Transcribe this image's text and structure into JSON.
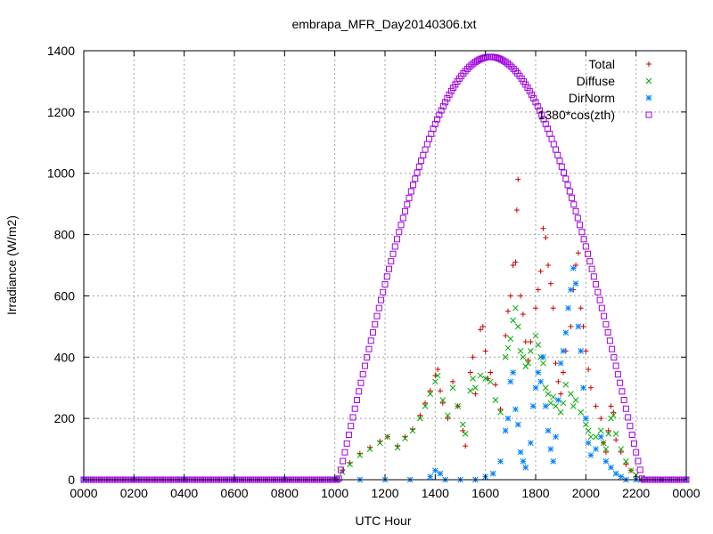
{
  "chart_data": {
    "type": "scatter",
    "title": "embrapa_MFR_Day20140306.txt",
    "xlabel": "UTC Hour",
    "ylabel": "Irradiance (W/m2)",
    "xlim": [
      0,
      2400
    ],
    "ylim": [
      0,
      1400
    ],
    "x_ticks": [
      "0000",
      "0200",
      "0400",
      "0600",
      "0800",
      "1000",
      "1200",
      "1400",
      "1600",
      "1800",
      "2000",
      "2200",
      "0000"
    ],
    "y_ticks": [
      "0",
      "200",
      "400",
      "600",
      "800",
      "1000",
      "1200",
      "1400"
    ],
    "grid": true,
    "legend_position": "top-right",
    "series": [
      {
        "name": "Total",
        "marker": "plus",
        "color": "#cc0000",
        "points": [
          [
            1010,
            0
          ],
          [
            1030,
            30
          ],
          [
            1060,
            55
          ],
          [
            1100,
            85
          ],
          [
            1140,
            105
          ],
          [
            1180,
            125
          ],
          [
            1210,
            140
          ],
          [
            1250,
            110
          ],
          [
            1280,
            140
          ],
          [
            1310,
            165
          ],
          [
            1340,
            210
          ],
          [
            1360,
            250
          ],
          [
            1380,
            290
          ],
          [
            1400,
            340
          ],
          [
            1410,
            360
          ],
          [
            1420,
            290
          ],
          [
            1430,
            250
          ],
          [
            1450,
            200
          ],
          [
            1470,
            320
          ],
          [
            1490,
            240
          ],
          [
            1510,
            160
          ],
          [
            1520,
            110
          ],
          [
            1540,
            350
          ],
          [
            1550,
            400
          ],
          [
            1560,
            280
          ],
          [
            1580,
            490
          ],
          [
            1590,
            500
          ],
          [
            1600,
            420
          ],
          [
            1610,
            330
          ],
          [
            1620,
            350
          ],
          [
            1640,
            310
          ],
          [
            1660,
            230
          ],
          [
            1680,
            470
          ],
          [
            1690,
            550
          ],
          [
            1700,
            600
          ],
          [
            1710,
            700
          ],
          [
            1720,
            710
          ],
          [
            1725,
            880
          ],
          [
            1730,
            980
          ],
          [
            1740,
            600
          ],
          [
            1750,
            540
          ],
          [
            1760,
            450
          ],
          [
            1770,
            390
          ],
          [
            1780,
            450
          ],
          [
            1800,
            560
          ],
          [
            1810,
            620
          ],
          [
            1820,
            680
          ],
          [
            1830,
            820
          ],
          [
            1840,
            790
          ],
          [
            1850,
            700
          ],
          [
            1860,
            640
          ],
          [
            1870,
            560
          ],
          [
            1880,
            380
          ],
          [
            1890,
            320
          ],
          [
            1900,
            280
          ],
          [
            1910,
            350
          ],
          [
            1920,
            420
          ],
          [
            1940,
            500
          ],
          [
            1950,
            620
          ],
          [
            1960,
            700
          ],
          [
            1970,
            740
          ],
          [
            1980,
            560
          ],
          [
            1990,
            500
          ],
          [
            2000,
            420
          ],
          [
            2010,
            360
          ],
          [
            2020,
            300
          ],
          [
            2040,
            240
          ],
          [
            2060,
            200
          ],
          [
            2070,
            120
          ],
          [
            2080,
            90
          ],
          [
            2090,
            160
          ],
          [
            2100,
            240
          ],
          [
            2110,
            220
          ],
          [
            2120,
            130
          ],
          [
            2140,
            90
          ],
          [
            2160,
            50
          ],
          [
            2180,
            30
          ],
          [
            2200,
            10
          ],
          [
            2220,
            0
          ]
        ]
      },
      {
        "name": "Diffuse",
        "marker": "cross",
        "color": "#00aa00",
        "points": [
          [
            1010,
            0
          ],
          [
            1030,
            25
          ],
          [
            1060,
            50
          ],
          [
            1100,
            80
          ],
          [
            1140,
            100
          ],
          [
            1180,
            120
          ],
          [
            1210,
            140
          ],
          [
            1250,
            105
          ],
          [
            1280,
            135
          ],
          [
            1310,
            160
          ],
          [
            1340,
            200
          ],
          [
            1360,
            240
          ],
          [
            1380,
            280
          ],
          [
            1400,
            320
          ],
          [
            1410,
            340
          ],
          [
            1430,
            260
          ],
          [
            1450,
            210
          ],
          [
            1470,
            300
          ],
          [
            1490,
            240
          ],
          [
            1510,
            180
          ],
          [
            1520,
            150
          ],
          [
            1540,
            290
          ],
          [
            1550,
            330
          ],
          [
            1560,
            300
          ],
          [
            1580,
            340
          ],
          [
            1600,
            330
          ],
          [
            1620,
            320
          ],
          [
            1640,
            260
          ],
          [
            1660,
            220
          ],
          [
            1680,
            400
          ],
          [
            1690,
            430
          ],
          [
            1700,
            460
          ],
          [
            1710,
            520
          ],
          [
            1720,
            560
          ],
          [
            1730,
            500
          ],
          [
            1740,
            420
          ],
          [
            1750,
            400
          ],
          [
            1760,
            370
          ],
          [
            1770,
            380
          ],
          [
            1780,
            420
          ],
          [
            1800,
            470
          ],
          [
            1810,
            440
          ],
          [
            1820,
            400
          ],
          [
            1830,
            380
          ],
          [
            1840,
            300
          ],
          [
            1850,
            280
          ],
          [
            1860,
            250
          ],
          [
            1870,
            270
          ],
          [
            1880,
            240
          ],
          [
            1900,
            220
          ],
          [
            1910,
            250
          ],
          [
            1920,
            310
          ],
          [
            1940,
            280
          ],
          [
            1950,
            240
          ],
          [
            1960,
            260
          ],
          [
            1980,
            220
          ],
          [
            2000,
            180
          ],
          [
            2010,
            160
          ],
          [
            2020,
            140
          ],
          [
            2040,
            140
          ],
          [
            2060,
            160
          ],
          [
            2070,
            120
          ],
          [
            2080,
            100
          ],
          [
            2090,
            150
          ],
          [
            2100,
            200
          ],
          [
            2110,
            210
          ],
          [
            2120,
            150
          ],
          [
            2140,
            100
          ],
          [
            2160,
            60
          ],
          [
            2180,
            30
          ],
          [
            2200,
            15
          ],
          [
            2220,
            0
          ]
        ]
      },
      {
        "name": "DirNorm",
        "marker": "star",
        "color": "#0080ff",
        "points": [
          [
            0,
            0
          ],
          [
            200,
            0
          ],
          [
            400,
            0
          ],
          [
            600,
            0
          ],
          [
            800,
            0
          ],
          [
            1000,
            0
          ],
          [
            1100,
            0
          ],
          [
            1200,
            0
          ],
          [
            1300,
            0
          ],
          [
            1380,
            10
          ],
          [
            1400,
            30
          ],
          [
            1420,
            20
          ],
          [
            1440,
            0
          ],
          [
            1500,
            0
          ],
          [
            1560,
            0
          ],
          [
            1600,
            10
          ],
          [
            1630,
            20
          ],
          [
            1660,
            60
          ],
          [
            1680,
            160
          ],
          [
            1690,
            200
          ],
          [
            1700,
            320
          ],
          [
            1710,
            350
          ],
          [
            1720,
            230
          ],
          [
            1730,
            180
          ],
          [
            1740,
            90
          ],
          [
            1750,
            60
          ],
          [
            1760,
            40
          ],
          [
            1780,
            120
          ],
          [
            1790,
            240
          ],
          [
            1800,
            300
          ],
          [
            1810,
            350
          ],
          [
            1820,
            320
          ],
          [
            1830,
            400
          ],
          [
            1840,
            240
          ],
          [
            1850,
            160
          ],
          [
            1860,
            100
          ],
          [
            1870,
            60
          ],
          [
            1880,
            140
          ],
          [
            1890,
            260
          ],
          [
            1900,
            380
          ],
          [
            1910,
            420
          ],
          [
            1920,
            480
          ],
          [
            1930,
            560
          ],
          [
            1940,
            620
          ],
          [
            1950,
            690
          ],
          [
            1960,
            640
          ],
          [
            1970,
            500
          ],
          [
            1980,
            420
          ],
          [
            1990,
            300
          ],
          [
            2000,
            200
          ],
          [
            2010,
            120
          ],
          [
            2020,
            80
          ],
          [
            2040,
            100
          ],
          [
            2060,
            140
          ],
          [
            2080,
            60
          ],
          [
            2100,
            40
          ],
          [
            2120,
            20
          ],
          [
            2140,
            10
          ],
          [
            2160,
            0
          ],
          [
            2200,
            0
          ],
          [
            2300,
            0
          ],
          [
            2400,
            0
          ]
        ]
      },
      {
        "name": "1380*cos(zth)",
        "marker": "square",
        "color": "#a000e0",
        "peak": 1380,
        "peak_x": 1620,
        "rise_x": 1015,
        "set_x": 2225
      }
    ]
  }
}
